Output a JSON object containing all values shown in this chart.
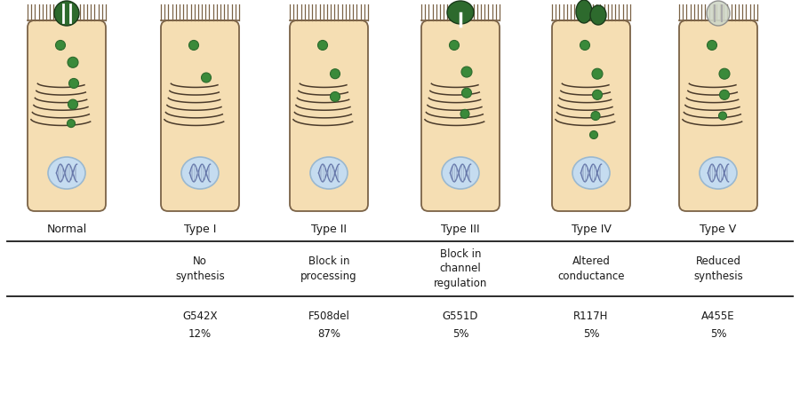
{
  "cell_color": "#F5DEB3",
  "cell_border": "#7B6347",
  "green_dark": "#2D6A2D",
  "green_med": "#3A8A3A",
  "dna_blue": "#C5DCF0",
  "dna_border": "#9AB8D0",
  "white": "#FFFFFF",
  "gray_protein": "#C8C8C8",
  "gray_protein_border": "#999999",
  "black": "#1A1A1A",
  "line_color": "#333333",
  "types": [
    "Normal",
    "Type I",
    "Type II",
    "Type III",
    "Type IV",
    "Type V"
  ],
  "descriptions": [
    "",
    "No\nsynthesis",
    "Block in\nprocessing",
    "Block in\nchannel\nregulation",
    "Altered\nconductance",
    "Reduced\nsynthesis"
  ],
  "mutations": [
    "",
    "G542X",
    "F508del",
    "G551D",
    "R117H",
    "A455E"
  ],
  "percentages": [
    "",
    "12%",
    "87%",
    "5%",
    "5%",
    "5%"
  ],
  "fig_width": 9.0,
  "fig_height": 4.43,
  "dpi": 100
}
